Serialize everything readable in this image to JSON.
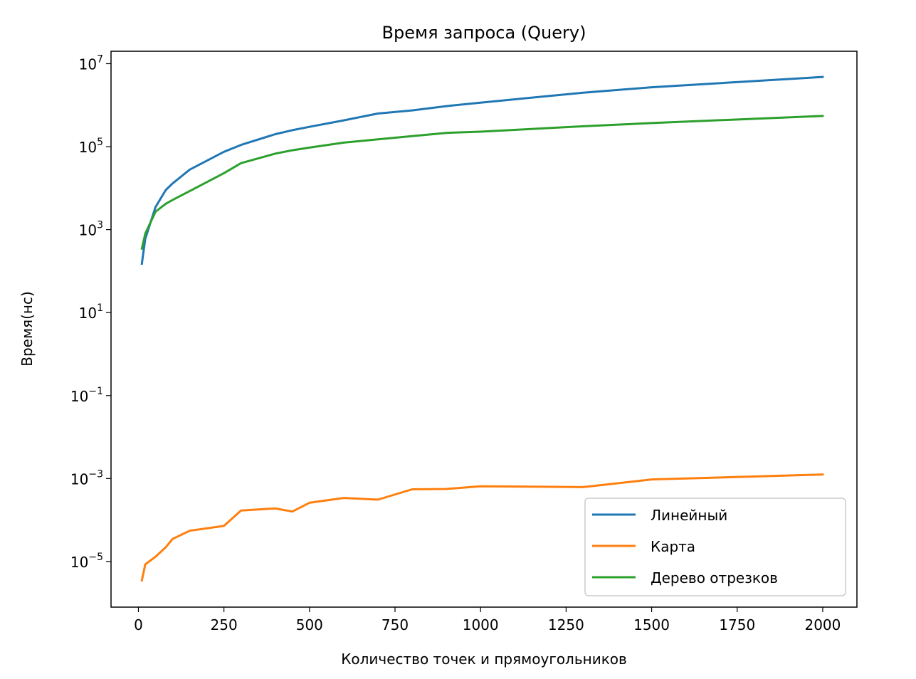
{
  "chart_data": {
    "type": "line",
    "title": "Время запроса (Query)",
    "xlabel": "Количество точек и прямоугольников",
    "ylabel": "Время(нс)",
    "yscale": "log",
    "xlim": [
      -80,
      2100
    ],
    "ylim_exp": [
      -6.1,
      7.3
    ],
    "xticks": [
      0,
      250,
      500,
      750,
      1000,
      1250,
      1500,
      1750,
      2000
    ],
    "yticks": [
      {
        "base": "10",
        "exp": "7",
        "value_exp": 7
      },
      {
        "base": "10",
        "exp": "5",
        "value_exp": 5
      },
      {
        "base": "10",
        "exp": "3",
        "value_exp": 3
      },
      {
        "base": "10",
        "exp": "1",
        "value_exp": 1
      },
      {
        "base": "10",
        "exp": "−1",
        "value_exp": -1
      },
      {
        "base": "10",
        "exp": "−3",
        "value_exp": -3
      },
      {
        "base": "10",
        "exp": "−5",
        "value_exp": -5
      }
    ],
    "grid": false,
    "legend_position": "lower-right",
    "x": [
      10,
      20,
      50,
      80,
      100,
      150,
      250,
      300,
      400,
      450,
      500,
      600,
      700,
      800,
      900,
      1000,
      1300,
      1500,
      2000
    ],
    "series": [
      {
        "name": "Линейный",
        "color": "#1f77b4",
        "values": [
          150,
          600,
          3500,
          9000,
          13000,
          28000,
          75000,
          110000,
          200000,
          250000,
          300000,
          430000,
          630000,
          750000,
          950000,
          1150000,
          2000000,
          2700000,
          4800000
        ]
      },
      {
        "name": "Карта",
        "color": "#ff7f0e",
        "values": [
          3.5e-06,
          8.5e-06,
          1.3e-05,
          2.2e-05,
          3.5e-05,
          5.5e-05,
          7.2e-05,
          0.00017,
          0.00019,
          0.00016,
          0.00026,
          0.00034,
          0.00031,
          0.00055,
          0.00056,
          0.00065,
          0.00062,
          0.00095,
          0.00125
        ]
      },
      {
        "name": "Дерево отрезков",
        "color": "#2ca02c",
        "values": [
          350,
          800,
          2700,
          4200,
          5200,
          8500,
          23000,
          40000,
          68000,
          82000,
          95000,
          125000,
          150000,
          180000,
          215000,
          230000,
          310000,
          370000,
          550000
        ]
      }
    ]
  }
}
